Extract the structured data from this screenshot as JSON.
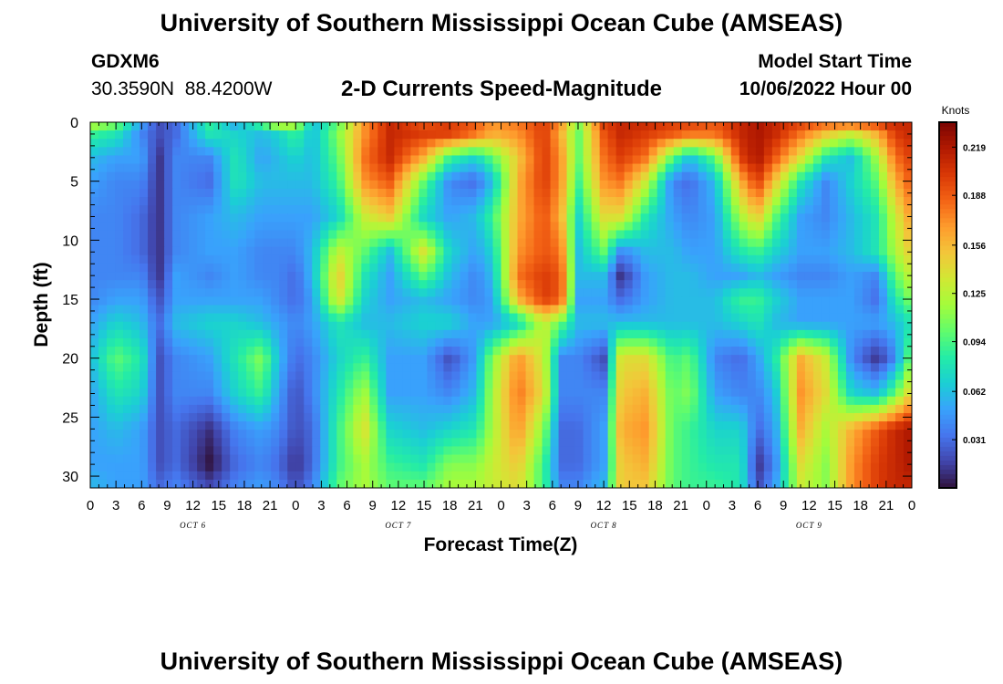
{
  "header": {
    "title": "University of Southern Mississippi Ocean Cube (AMSEAS)",
    "station_id": "GDXM6",
    "station_coords": "30.3590N  88.4200W",
    "product": "2-D Currents Speed-Magnitude",
    "model_start_label": "Model Start Time",
    "model_start_value": "10/06/2022 Hour 00"
  },
  "footer": {
    "title": "University of Southern Mississippi Ocean Cube (AMSEAS)"
  },
  "colors": {
    "scale": [
      "#30123b",
      "#4145ab",
      "#4675ed",
      "#39a2fc",
      "#1bcfd4",
      "#24eca6",
      "#61fc6c",
      "#a4fc3b",
      "#d1e834",
      "#f3c63a",
      "#fe9b2d",
      "#f36315",
      "#d93806",
      "#b11901",
      "#7a0402"
    ]
  },
  "chart_data": {
    "type": "heatmap",
    "title": "2-D Currents Speed-Magnitude",
    "xlabel": "Forecast Time(Z)",
    "ylabel": "Depth (ft)",
    "x_unit": "hours since model start",
    "xlim": [
      0,
      96
    ],
    "ylim": [
      31,
      0
    ],
    "x_ticks": [
      0,
      3,
      6,
      9,
      12,
      15,
      18,
      21,
      24,
      27,
      30,
      33,
      36,
      39,
      42,
      45,
      48,
      51,
      54,
      57,
      60,
      63,
      66,
      69,
      72,
      75,
      78,
      81,
      84,
      87,
      90,
      93,
      96
    ],
    "x_tick_labels": [
      "0",
      "3",
      "6",
      "9",
      "12",
      "15",
      "18",
      "21",
      "0",
      "3",
      "6",
      "9",
      "12",
      "15",
      "18",
      "21",
      "0",
      "3",
      "6",
      "9",
      "12",
      "15",
      "18",
      "21",
      "0",
      "3",
      "6",
      "9",
      "12",
      "15",
      "18",
      "21",
      "0"
    ],
    "day_labels": [
      {
        "label": "OCT 6",
        "x": 12
      },
      {
        "label": "OCT 7",
        "x": 36
      },
      {
        "label": "OCT 8",
        "x": 60
      },
      {
        "label": "OCT 9",
        "x": 84
      }
    ],
    "y_ticks": [
      0,
      5,
      10,
      15,
      20,
      25,
      30
    ],
    "y_tick_labels": [
      "0",
      "5",
      "10",
      "15",
      "20",
      "25",
      "30"
    ],
    "colorbar": {
      "unit": "Knots",
      "range": [
        0.0,
        0.235
      ],
      "ticks": [
        0.031,
        0.062,
        0.094,
        0.125,
        0.156,
        0.188,
        0.219
      ],
      "tick_labels": [
        "0.031",
        "0.062",
        "0.094",
        "0.125",
        "0.156",
        "0.188",
        "0.219"
      ]
    },
    "depths": [
      0,
      1,
      3,
      5,
      8,
      11,
      13,
      15,
      17,
      20,
      23,
      26,
      29,
      31
    ],
    "times": [
      0,
      3,
      6,
      8,
      10,
      14,
      17,
      20,
      22,
      24,
      26,
      29,
      32,
      35,
      39,
      42,
      45,
      47,
      50,
      53,
      55,
      57,
      60,
      62,
      65,
      68,
      70,
      73,
      76,
      78,
      80,
      83,
      86,
      89,
      92,
      94,
      96
    ],
    "values": [
      [
        0.13,
        0.11,
        0.05,
        0.02,
        0.03,
        0.09,
        0.05,
        0.1,
        0.14,
        0.13,
        0.06,
        0.1,
        0.17,
        0.21,
        0.19,
        0.2,
        0.19,
        0.17,
        0.18,
        0.2,
        0.17,
        0.11,
        0.2,
        0.21,
        0.21,
        0.2,
        0.2,
        0.19,
        0.21,
        0.22,
        0.21,
        0.2,
        0.19,
        0.19,
        0.2,
        0.21,
        0.21
      ],
      [
        0.09,
        0.08,
        0.04,
        0.02,
        0.03,
        0.08,
        0.07,
        0.06,
        0.07,
        0.09,
        0.06,
        0.11,
        0.17,
        0.21,
        0.2,
        0.2,
        0.18,
        0.16,
        0.17,
        0.2,
        0.16,
        0.1,
        0.19,
        0.21,
        0.2,
        0.19,
        0.18,
        0.18,
        0.21,
        0.22,
        0.21,
        0.18,
        0.15,
        0.13,
        0.16,
        0.2,
        0.21
      ],
      [
        0.06,
        0.05,
        0.05,
        0.01,
        0.04,
        0.04,
        0.08,
        0.05,
        0.06,
        0.07,
        0.06,
        0.1,
        0.18,
        0.21,
        0.16,
        0.09,
        0.07,
        0.1,
        0.15,
        0.2,
        0.17,
        0.1,
        0.18,
        0.2,
        0.18,
        0.1,
        0.06,
        0.1,
        0.2,
        0.22,
        0.19,
        0.14,
        0.08,
        0.06,
        0.12,
        0.18,
        0.2
      ],
      [
        0.05,
        0.04,
        0.04,
        0.01,
        0.04,
        0.03,
        0.08,
        0.06,
        0.06,
        0.06,
        0.06,
        0.09,
        0.17,
        0.19,
        0.1,
        0.04,
        0.03,
        0.06,
        0.16,
        0.2,
        0.17,
        0.09,
        0.17,
        0.18,
        0.13,
        0.04,
        0.03,
        0.06,
        0.16,
        0.2,
        0.15,
        0.08,
        0.04,
        0.07,
        0.1,
        0.16,
        0.19
      ],
      [
        0.04,
        0.04,
        0.03,
        0.01,
        0.04,
        0.05,
        0.06,
        0.05,
        0.05,
        0.05,
        0.05,
        0.07,
        0.13,
        0.15,
        0.07,
        0.05,
        0.06,
        0.09,
        0.16,
        0.19,
        0.16,
        0.07,
        0.14,
        0.14,
        0.08,
        0.05,
        0.04,
        0.05,
        0.12,
        0.15,
        0.1,
        0.05,
        0.04,
        0.06,
        0.08,
        0.13,
        0.17
      ],
      [
        0.04,
        0.04,
        0.03,
        0.01,
        0.04,
        0.05,
        0.05,
        0.04,
        0.04,
        0.04,
        0.06,
        0.13,
        0.1,
        0.06,
        0.14,
        0.07,
        0.05,
        0.07,
        0.17,
        0.19,
        0.18,
        0.06,
        0.1,
        0.04,
        0.06,
        0.06,
        0.05,
        0.05,
        0.08,
        0.09,
        0.07,
        0.05,
        0.05,
        0.06,
        0.08,
        0.12,
        0.15
      ],
      [
        0.04,
        0.04,
        0.04,
        0.01,
        0.05,
        0.04,
        0.05,
        0.04,
        0.04,
        0.03,
        0.06,
        0.15,
        0.08,
        0.05,
        0.1,
        0.06,
        0.04,
        0.06,
        0.18,
        0.2,
        0.19,
        0.06,
        0.06,
        0.01,
        0.05,
        0.06,
        0.06,
        0.05,
        0.05,
        0.06,
        0.05,
        0.04,
        0.04,
        0.05,
        0.04,
        0.1,
        0.13
      ],
      [
        0.04,
        0.05,
        0.05,
        0.02,
        0.05,
        0.05,
        0.05,
        0.05,
        0.04,
        0.03,
        0.05,
        0.14,
        0.07,
        0.05,
        0.06,
        0.05,
        0.04,
        0.05,
        0.16,
        0.2,
        0.19,
        0.05,
        0.05,
        0.03,
        0.05,
        0.06,
        0.06,
        0.06,
        0.09,
        0.09,
        0.07,
        0.05,
        0.05,
        0.05,
        0.03,
        0.08,
        0.11
      ],
      [
        0.05,
        0.07,
        0.06,
        0.03,
        0.06,
        0.07,
        0.07,
        0.06,
        0.05,
        0.04,
        0.05,
        0.08,
        0.06,
        0.06,
        0.07,
        0.07,
        0.05,
        0.05,
        0.07,
        0.13,
        0.1,
        0.06,
        0.06,
        0.06,
        0.06,
        0.06,
        0.06,
        0.06,
        0.07,
        0.08,
        0.06,
        0.05,
        0.05,
        0.05,
        0.05,
        0.06,
        0.08
      ],
      [
        0.06,
        0.1,
        0.08,
        0.02,
        0.04,
        0.05,
        0.08,
        0.11,
        0.06,
        0.03,
        0.04,
        0.07,
        0.09,
        0.05,
        0.05,
        0.02,
        0.05,
        0.11,
        0.17,
        0.13,
        0.04,
        0.04,
        0.02,
        0.14,
        0.14,
        0.09,
        0.1,
        0.04,
        0.03,
        0.05,
        0.08,
        0.16,
        0.13,
        0.04,
        0.01,
        0.04,
        0.11
      ],
      [
        0.05,
        0.08,
        0.07,
        0.02,
        0.04,
        0.04,
        0.07,
        0.09,
        0.05,
        0.02,
        0.04,
        0.08,
        0.12,
        0.05,
        0.05,
        0.04,
        0.06,
        0.12,
        0.18,
        0.14,
        0.04,
        0.04,
        0.04,
        0.15,
        0.16,
        0.1,
        0.11,
        0.05,
        0.04,
        0.04,
        0.06,
        0.17,
        0.14,
        0.07,
        0.06,
        0.1,
        0.15
      ],
      [
        0.05,
        0.06,
        0.05,
        0.02,
        0.03,
        0.01,
        0.04,
        0.05,
        0.04,
        0.02,
        0.03,
        0.09,
        0.14,
        0.07,
        0.06,
        0.07,
        0.08,
        0.12,
        0.17,
        0.11,
        0.03,
        0.03,
        0.05,
        0.16,
        0.17,
        0.1,
        0.09,
        0.07,
        0.07,
        0.03,
        0.05,
        0.16,
        0.12,
        0.16,
        0.19,
        0.21,
        0.22
      ],
      [
        0.05,
        0.05,
        0.05,
        0.02,
        0.03,
        0.0,
        0.03,
        0.04,
        0.03,
        0.01,
        0.03,
        0.09,
        0.12,
        0.09,
        0.08,
        0.11,
        0.11,
        0.13,
        0.15,
        0.09,
        0.03,
        0.03,
        0.05,
        0.15,
        0.16,
        0.1,
        0.09,
        0.08,
        0.08,
        0.01,
        0.04,
        0.14,
        0.11,
        0.17,
        0.2,
        0.21,
        0.22
      ],
      [
        0.06,
        0.05,
        0.05,
        0.03,
        0.04,
        0.02,
        0.04,
        0.05,
        0.04,
        0.02,
        0.04,
        0.1,
        0.12,
        0.1,
        0.1,
        0.12,
        0.12,
        0.13,
        0.14,
        0.09,
        0.04,
        0.04,
        0.06,
        0.15,
        0.15,
        0.1,
        0.09,
        0.09,
        0.08,
        0.02,
        0.05,
        0.13,
        0.11,
        0.17,
        0.2,
        0.21,
        0.21
      ]
    ]
  }
}
